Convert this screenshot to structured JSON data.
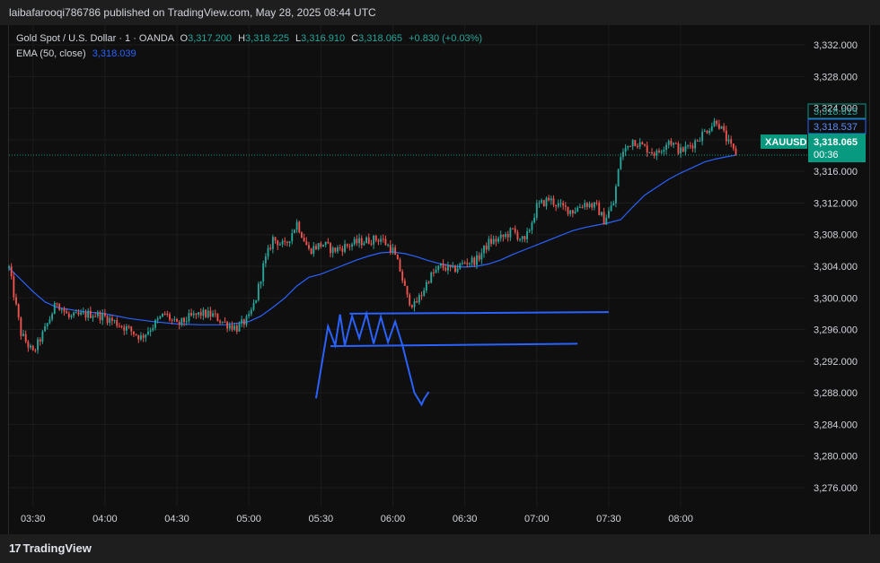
{
  "header": {
    "published": "laibafarooqi786786 published on TradingView.com, May 28, 2025 08:44 UTC"
  },
  "legend": {
    "symbol": "Gold Spot / U.S. Dollar · 1 · OANDA",
    "o_label": "O",
    "o_value": "3,317.200",
    "h_label": "H",
    "h_value": "3,318.225",
    "l_label": "L",
    "l_value": "3,316.910",
    "c_label": "C",
    "c_value": "3,318.065",
    "change": "+0.830 (+0.03%)",
    "ema_label": "EMA (50, close)",
    "ema_value": "3,318.039"
  },
  "footer": {
    "logo_mark": "17",
    "logo_text": "TradingView"
  },
  "badges": {
    "ticker": "XAUUSD",
    "price_a": "3,318.615",
    "price_b": "3,318.537",
    "last_price": "3,318.065",
    "countdown": "00:36"
  },
  "colors": {
    "up": "#26a69a",
    "down": "#ef5350",
    "ema": "#2962ff",
    "drawing": "#2962ff",
    "badge_green": "#089981",
    "badge_blue": "#2962ff"
  },
  "chart_data": {
    "type": "candlestick",
    "y_ticks": [
      "3,332.000",
      "3,328.000",
      "3,324.000",
      "3,320.000",
      "3,316.000",
      "3,312.000",
      "3,308.000",
      "3,304.000",
      "3,300.000",
      "3,296.000",
      "3,292.000",
      "3,288.000",
      "3,284.000",
      "3,280.000",
      "3,276.000"
    ],
    "y_tick_values": [
      3332,
      3328,
      3324,
      3320,
      3316,
      3312,
      3308,
      3304,
      3300,
      3296,
      3292,
      3288,
      3284,
      3280,
      3276
    ],
    "ylim": [
      3273.5,
      3334.5
    ],
    "x_ticks": [
      "03:30",
      "04:00",
      "04:30",
      "05:00",
      "05:30",
      "06:00",
      "06:30",
      "07:00",
      "07:30",
      "08:00"
    ],
    "x_tick_minutes": [
      210,
      240,
      270,
      300,
      330,
      360,
      390,
      420,
      450,
      480
    ],
    "xlim": [
      200,
      532
    ],
    "last_price": 3318.065,
    "close_path_minutes": [
      200,
      205,
      210,
      215,
      220,
      225,
      230,
      235,
      240,
      245,
      250,
      255,
      260,
      265,
      270,
      275,
      280,
      285,
      290,
      295,
      300,
      303,
      306,
      310,
      315,
      320,
      325,
      328,
      331,
      335,
      340,
      345,
      350,
      355,
      360,
      363,
      366,
      369,
      372,
      375,
      380,
      385,
      390,
      395,
      400,
      405,
      410,
      415,
      420,
      425,
      430,
      435,
      440,
      445,
      448,
      452,
      455,
      460,
      465,
      470,
      475,
      480,
      485,
      490,
      495,
      500,
      503
    ],
    "close_path_values": [
      3303.8,
      3295.5,
      3293.0,
      3296.0,
      3299.5,
      3297.5,
      3297.8,
      3298.0,
      3297.6,
      3296.8,
      3296.0,
      3295.0,
      3296.5,
      3298.0,
      3296.5,
      3297.5,
      3298.0,
      3297.8,
      3296.8,
      3296.2,
      3297.4,
      3300.0,
      3304.0,
      3307.5,
      3306.5,
      3309.5,
      3306.0,
      3306.5,
      3306.8,
      3306.0,
      3306.5,
      3307.0,
      3307.3,
      3307.5,
      3306.0,
      3303.5,
      3300.0,
      3299.0,
      3300.5,
      3302.5,
      3304.0,
      3303.5,
      3304.5,
      3304.8,
      3307.0,
      3307.5,
      3308.5,
      3307.0,
      3311.5,
      3312.5,
      3311.5,
      3311.0,
      3312.0,
      3311.5,
      3309.8,
      3312.0,
      3318.0,
      3320.0,
      3319.0,
      3318.2,
      3320.0,
      3318.5,
      3319.5,
      3321.0,
      3322.5,
      3319.5,
      3318.065
    ],
    "ema_minutes": [
      200,
      205,
      210,
      215,
      220,
      230,
      240,
      250,
      260,
      270,
      280,
      290,
      300,
      305,
      310,
      315,
      320,
      325,
      330,
      335,
      340,
      345,
      350,
      355,
      360,
      365,
      370,
      375,
      380,
      385,
      390,
      395,
      400,
      405,
      410,
      415,
      420,
      425,
      430,
      435,
      440,
      445,
      450,
      455,
      460,
      465,
      470,
      475,
      480,
      485,
      490,
      495,
      500,
      503
    ],
    "ema_values": [
      3303.8,
      3302.3,
      3300.8,
      3299.5,
      3298.8,
      3298.3,
      3298.0,
      3297.4,
      3297.0,
      3296.7,
      3296.6,
      3296.6,
      3297.0,
      3297.7,
      3298.8,
      3300.0,
      3301.5,
      3302.6,
      3303.0,
      3303.6,
      3304.2,
      3304.8,
      3305.3,
      3305.7,
      3305.8,
      3305.6,
      3305.2,
      3304.7,
      3304.3,
      3304.0,
      3303.9,
      3304.0,
      3304.3,
      3304.8,
      3305.5,
      3306.1,
      3306.7,
      3307.3,
      3307.9,
      3308.5,
      3308.9,
      3309.2,
      3309.5,
      3309.9,
      3311.5,
      3313.0,
      3314.0,
      3315.0,
      3315.8,
      3316.5,
      3317.2,
      3317.6,
      3317.9,
      3318.039
    ]
  },
  "drawings": {
    "channel_top": {
      "x": [
        342,
        450
      ],
      "y": [
        3298.0,
        3298.2
      ]
    },
    "channel_bottom": {
      "x": [
        334,
        437
      ],
      "y": [
        3293.9,
        3294.2
      ]
    },
    "zigzag": {
      "minutes": [
        328,
        333,
        336,
        338,
        340,
        343,
        346,
        349,
        352,
        355,
        358,
        361,
        364,
        369,
        372,
        373,
        375
      ],
      "values": [
        3287.3,
        3296.4,
        3294.0,
        3297.9,
        3294.0,
        3297.7,
        3294.9,
        3298.0,
        3294.2,
        3297.6,
        3294.4,
        3297.0,
        3294.0,
        3288.0,
        3286.5,
        3287.2,
        3288.1
      ]
    },
    "arrow_head": {
      "minutes": [
        372,
        373,
        375
      ],
      "values": [
        3287.5,
        3286.5,
        3288.1
      ]
    }
  }
}
